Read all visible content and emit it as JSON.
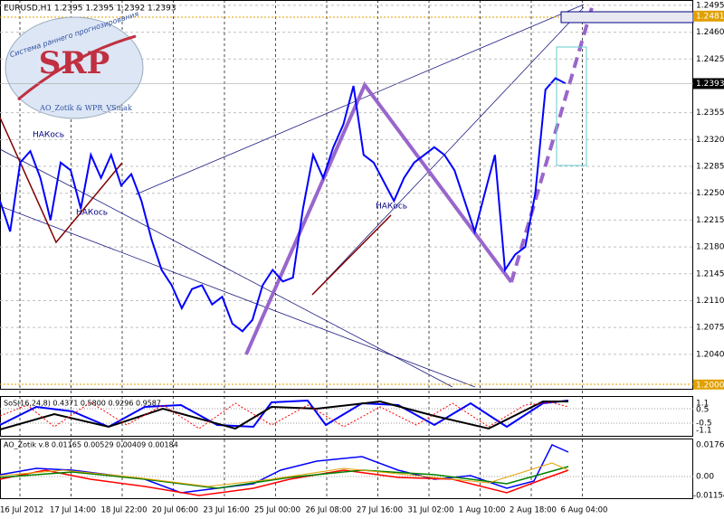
{
  "chart_data": {
    "type": "line",
    "title": "EURUSD,H1 1.2395 1.2395 1.2392 1.2393",
    "ylim": [
      1.1995,
      1.2502
    ],
    "yticks": [
      1.2495,
      {
        "value": 1.246,
        "label": "1.2460"
      },
      1.2425,
      1.2355,
      {
        "value": 1.232,
        "label": "1.2320"
      },
      1.2285,
      {
        "value": 1.225,
        "label": "1.2250"
      },
      1.2215,
      {
        "value": 1.218,
        "label": "1.2180"
      },
      1.2145,
      {
        "value": 1.211,
        "label": "1.2110"
      },
      1.2075,
      {
        "value": 1.204,
        "label": "1.2040"
      }
    ],
    "x_labels": [
      "16 Jul 2012",
      "17 Jul 14:00",
      "18 Jul 22:00",
      "20 Jul 06:00",
      "23 Jul 16:00",
      "25 Jul 00:00",
      "26 Jul 08:00",
      "27 Jul 16:00",
      "31 Jul 02:00",
      "1 Aug 10:00",
      "2 Aug 18:00",
      "6 Aug 04:00"
    ],
    "color": "#0000ff",
    "values": [
      1.224,
      1.22,
      1.229,
      1.2305,
      1.227,
      1.2215,
      1.229,
      1.228,
      1.223,
      1.23,
      1.227,
      1.23,
      1.226,
      1.2275,
      1.224,
      1.219,
      1.215,
      1.213,
      1.21,
      1.2125,
      1.213,
      1.2105,
      1.2115,
      1.208,
      1.207,
      1.2085,
      1.213,
      1.215,
      1.2135,
      1.214,
      1.223,
      1.23,
      1.227,
      1.231,
      1.234,
      1.239,
      1.23,
      1.229,
      1.2265,
      1.224,
      1.227,
      1.229,
      1.23,
      1.231,
      1.23,
      1.228,
      1.224,
      1.22,
      1.225,
      1.23,
      1.215,
      1.217,
      1.218,
      1.225,
      1.2385,
      1.24,
      1.2393
    ],
    "last_price": 1.2393,
    "target_price": 1.2481,
    "level_price": {
      "value": 1.2,
      "label": "1.2000"
    },
    "annotations": [
      "НАКось",
      "НАКось",
      "НАКось"
    ],
    "logo": {
      "title": "SRP",
      "subtitle": "Система раннего прогнозирования",
      "footer": "AO_Zotik & WPR_VSmak"
    },
    "indicator1": {
      "label": "SoS(16,24,8) 0.4371 0.5800 0.9296 0.9587",
      "ticks": [
        "1.1",
        "0.5",
        "-0.5",
        "-1.1"
      ]
    },
    "indicator2": {
      "label": "AO_Zotik v.8 0.01165 0.00529 0.00409 0.00184",
      "ticks": [
        "0.01761",
        "0.00",
        "-0.01154"
      ]
    }
  }
}
